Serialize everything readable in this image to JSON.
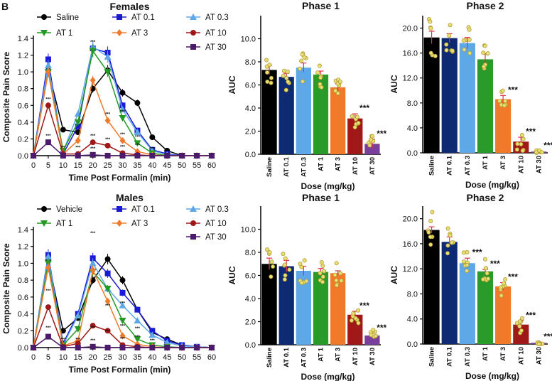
{
  "panel_label": "B",
  "chart_data": [
    {
      "id": "females_time",
      "type": "line",
      "title": "Females",
      "xlabel": "Time Post Formalin (min)",
      "ylabel": "Composite Pain Score",
      "x": [
        0,
        5,
        10,
        15,
        20,
        25,
        30,
        35,
        40,
        45,
        50,
        55,
        60
      ],
      "xticks": [
        "0",
        "5",
        "10",
        "15",
        "20",
        "25",
        "30",
        "35",
        "40",
        "45",
        "50",
        "55",
        "60"
      ],
      "ylim": [
        0,
        1.4
      ],
      "yticks": [
        "0.0",
        "0.2",
        "0.4",
        "0.6",
        "0.8",
        "1.0",
        "1.2",
        "1.4"
      ],
      "series": [
        {
          "name": "Saline",
          "color": "#000000",
          "marker": "circle",
          "values": [
            0,
            1.02,
            0.31,
            0.28,
            0.8,
            1.02,
            0.75,
            0.63,
            0.22,
            0.06,
            0,
            0,
            0
          ]
        },
        {
          "name": "AT 0.1",
          "color": "#1a1ad6",
          "marker": "square",
          "values": [
            0,
            1.15,
            0.02,
            0.35,
            1.28,
            1.23,
            0.6,
            0.3,
            0.07,
            0.02,
            0,
            0,
            0
          ]
        },
        {
          "name": "AT 0.3",
          "color": "#5fa8e8",
          "marker": "triangle-up",
          "values": [
            0,
            1.08,
            0.05,
            0.5,
            1.3,
            1.18,
            0.55,
            0.28,
            0.06,
            0.01,
            0,
            0,
            0
          ]
        },
        {
          "name": "AT 1",
          "color": "#229922",
          "marker": "triangle-down",
          "values": [
            0,
            1.0,
            0.06,
            0.4,
            1.25,
            1.0,
            0.45,
            0.15,
            0.03,
            0,
            0,
            0,
            0
          ]
        },
        {
          "name": "AT 3",
          "color": "#f07a2a",
          "marker": "diamond",
          "values": [
            0,
            1.0,
            0.02,
            0.18,
            0.9,
            0.42,
            0.18,
            0.05,
            0.01,
            0,
            0,
            0,
            0
          ]
        },
        {
          "name": "AT 10",
          "color": "#a01818",
          "marker": "circle",
          "values": [
            0,
            0.6,
            0.02,
            0.02,
            0.16,
            0.12,
            0.03,
            0.01,
            0,
            0,
            0,
            0,
            0
          ]
        },
        {
          "name": "AT 30",
          "color": "#4b1a6b",
          "marker": "square",
          "values": [
            0,
            0.16,
            0,
            0,
            0.01,
            0,
            0,
            0,
            0,
            0,
            0,
            0,
            0
          ]
        }
      ],
      "star_label": "***"
    },
    {
      "id": "females_phase1",
      "type": "bar",
      "title": "Phase 1",
      "xlabel": "Dose (mg/kg)",
      "ylabel": "AUC",
      "ylim": [
        0,
        12
      ],
      "yticks": [
        "0.0",
        "2.0",
        "4.0",
        "6.0",
        "8.0",
        "10.0"
      ],
      "categories": [
        "Saline",
        "AT 0.1",
        "AT 0.3",
        "AT 1",
        "AT 3",
        "AT 10",
        "AT 30"
      ],
      "values": [
        7.3,
        6.7,
        7.5,
        6.9,
        5.8,
        3.1,
        0.9
      ],
      "errors": [
        0.4,
        0.3,
        0.4,
        0.3,
        0.3,
        0.4,
        0.4
      ],
      "colors": [
        "#000000",
        "#0d2a73",
        "#5fa8e8",
        "#2a9a2a",
        "#f07a2a",
        "#a01818",
        "#7a3f9a"
      ],
      "significance": [
        "",
        "",
        "",
        "",
        "",
        "***",
        "***"
      ]
    },
    {
      "id": "females_phase2",
      "type": "bar",
      "title": "Phase 2",
      "xlabel": "Dose (mg/kg)",
      "ylabel": "AUC",
      "ylim": [
        0,
        22
      ],
      "yticks": [
        "0.0",
        "4.0",
        "8.0",
        "12.0",
        "16.0",
        "20.0"
      ],
      "categories": [
        "Saline",
        "AT 0.1",
        "AT 0.3",
        "AT 1",
        "AT 3",
        "AT 10",
        "AT 30"
      ],
      "values": [
        18.5,
        18.4,
        17.6,
        15.0,
        8.6,
        1.8,
        0.2
      ],
      "errors": [
        1.0,
        0.7,
        0.9,
        0.9,
        0.6,
        0.7,
        0.1
      ],
      "colors": [
        "#000000",
        "#0d2a73",
        "#5fa8e8",
        "#2a9a2a",
        "#f07a2a",
        "#a01818",
        "#7a3f9a"
      ],
      "significance": [
        "",
        "",
        "",
        "",
        "***",
        "***",
        "***"
      ]
    },
    {
      "id": "males_time",
      "type": "line",
      "title": "Males",
      "xlabel": "Time Post Formalin (min)",
      "ylabel": "Composite Pain Score",
      "x": [
        0,
        5,
        10,
        15,
        20,
        25,
        30,
        35,
        40,
        45,
        50,
        55,
        60
      ],
      "xticks": [
        "0",
        "5",
        "10",
        "15",
        "20",
        "25",
        "30",
        "35",
        "40",
        "45",
        "50",
        "55",
        "60"
      ],
      "ylim": [
        0,
        1.4
      ],
      "yticks": [
        "0.0",
        "0.2",
        "0.4",
        "0.6",
        "0.8",
        "1.0",
        "1.2",
        "1.4"
      ],
      "series": [
        {
          "name": "Vehicle",
          "color": "#000000",
          "marker": "circle",
          "values": [
            0,
            1.03,
            0.2,
            0.35,
            0.8,
            1.05,
            0.8,
            0.45,
            0.18,
            0.1,
            0.03,
            0.01,
            0
          ]
        },
        {
          "name": "AT 0.1",
          "color": "#1a1ad6",
          "marker": "square",
          "values": [
            0,
            1.1,
            0.05,
            0.4,
            1.06,
            0.88,
            0.65,
            0.45,
            0.2,
            0.08,
            0.03,
            0.01,
            0
          ]
        },
        {
          "name": "AT 0.3",
          "color": "#5fa8e8",
          "marker": "triangle-up",
          "values": [
            0,
            1.08,
            0.03,
            0.38,
            1.0,
            0.7,
            0.5,
            0.32,
            0.15,
            0.06,
            0.02,
            0.01,
            0
          ]
        },
        {
          "name": "AT 1",
          "color": "#229922",
          "marker": "triangle-down",
          "values": [
            0,
            1.0,
            0.03,
            0.22,
            0.9,
            0.7,
            0.32,
            0.1,
            0.03,
            0.01,
            0,
            0,
            0
          ]
        },
        {
          "name": "AT 3",
          "color": "#f07a2a",
          "marker": "diamond",
          "values": [
            0,
            0.95,
            0.02,
            0.08,
            0.92,
            0.55,
            0.14,
            0.04,
            0.01,
            0,
            0,
            0,
            0
          ]
        },
        {
          "name": "AT 10",
          "color": "#a01818",
          "marker": "circle",
          "values": [
            0,
            0.48,
            0.01,
            0.05,
            0.26,
            0.2,
            0.03,
            0.01,
            0,
            0,
            0,
            0,
            0
          ]
        },
        {
          "name": "AT 30",
          "color": "#4b1a6b",
          "marker": "square",
          "values": [
            0,
            0.13,
            0,
            0,
            0.01,
            0,
            0,
            0,
            0,
            0,
            0,
            0,
            0
          ]
        }
      ],
      "star_label": "***"
    },
    {
      "id": "males_phase1",
      "type": "bar",
      "title": "Phase 1",
      "xlabel": "Dose (mg/kg)",
      "ylabel": "AUC",
      "ylim": [
        0,
        12
      ],
      "yticks": [
        "0.0",
        "2.0",
        "4.0",
        "6.0",
        "8.0",
        "10.0"
      ],
      "categories": [
        "Saline",
        "AT 0.1",
        "AT 0.3",
        "AT 1",
        "AT 3",
        "AT 10",
        "AT 30"
      ],
      "values": [
        7.0,
        6.8,
        6.4,
        6.3,
        6.2,
        2.6,
        0.8
      ],
      "errors": [
        0.5,
        0.5,
        0.4,
        0.3,
        0.2,
        0.3,
        0.2
      ],
      "colors": [
        "#000000",
        "#0d2a73",
        "#5fa8e8",
        "#2a9a2a",
        "#f07a2a",
        "#a01818",
        "#7a3f9a"
      ],
      "significance": [
        "",
        "",
        "",
        "",
        "",
        "***",
        "***"
      ]
    },
    {
      "id": "males_phase2",
      "type": "bar",
      "title": "Phase 2",
      "xlabel": "Dose (mg/kg)",
      "ylabel": "AUC",
      "ylim": [
        0,
        22
      ],
      "yticks": [
        "0.0",
        "4.0",
        "8.0",
        "12.0",
        "16.0",
        "20.0"
      ],
      "categories": [
        "Saline",
        "AT 0.1",
        "AT 0.3",
        "AT 1",
        "AT 3",
        "AT 10",
        "AT 30"
      ],
      "values": [
        18.2,
        16.3,
        12.9,
        11.6,
        9.2,
        3.1,
        0.2
      ],
      "errors": [
        0.5,
        0.8,
        0.8,
        0.3,
        0.6,
        0.6,
        0.1
      ],
      "colors": [
        "#000000",
        "#0d2a73",
        "#5fa8e8",
        "#2a9a2a",
        "#f07a2a",
        "#a01818",
        "#7a3f9a"
      ],
      "significance": [
        "",
        "",
        "***",
        "***",
        "***",
        "***",
        "***"
      ]
    }
  ]
}
